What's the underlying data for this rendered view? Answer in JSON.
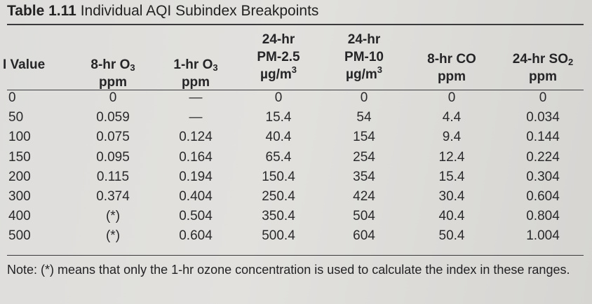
{
  "caption": {
    "label": "Table 1.11",
    "title": "Individual AQI Subindex Breakpoints"
  },
  "headers": [
    {
      "lines": [
        "I Value"
      ]
    },
    {
      "lines": [
        "8-hr O",
        "ppm"
      ],
      "sub": "3"
    },
    {
      "lines": [
        "1-hr O",
        "ppm"
      ],
      "sub": "3"
    },
    {
      "lines": [
        "24-hr",
        "PM-2.5",
        "µg/m"
      ],
      "sup": "3"
    },
    {
      "lines": [
        "24-hr",
        "PM-10",
        "µg/m"
      ],
      "sup": "3"
    },
    {
      "lines": [
        "8-hr CO",
        "ppm"
      ]
    },
    {
      "lines": [
        "24-hr SO",
        "ppm"
      ],
      "sub": "2"
    }
  ],
  "rows": [
    [
      "0",
      "0",
      "—",
      "0",
      "0",
      "0",
      "0"
    ],
    [
      "50",
      "0.059",
      "—",
      "15.4",
      "54",
      "4.4",
      "0.034"
    ],
    [
      "100",
      "0.075",
      "0.124",
      "40.4",
      "154",
      "9.4",
      "0.144"
    ],
    [
      "150",
      "0.095",
      "0.164",
      "65.4",
      "254",
      "12.4",
      "0.224"
    ],
    [
      "200",
      "0.115",
      "0.194",
      "150.4",
      "354",
      "15.4",
      "0.304"
    ],
    [
      "300",
      "0.374",
      "0.404",
      "250.4",
      "424",
      "30.4",
      "0.604"
    ],
    [
      "400",
      "(*)",
      "0.504",
      "350.4",
      "504",
      "40.4",
      "0.804"
    ],
    [
      "500",
      "(*)",
      "0.604",
      "500.4",
      "604",
      "50.4",
      "1.004"
    ]
  ],
  "note": "Note: (*) means that only the 1-hr ozone concentration is used to calculate the index in these ranges."
}
